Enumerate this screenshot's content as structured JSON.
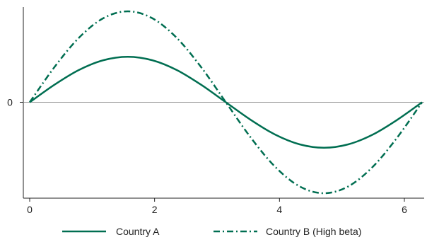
{
  "chart_data": {
    "type": "line",
    "title": "",
    "xlabel": "",
    "ylabel": "",
    "xlim": [
      0,
      6.2832
    ],
    "ylim": [
      -1.0,
      1.0
    ],
    "x_ticks": [
      0,
      2,
      4,
      6
    ],
    "x_tick_labels": [
      "0",
      "2",
      "4",
      "6"
    ],
    "y_ticks": [
      0
    ],
    "y_tick_labels": [
      "0"
    ],
    "zero_line": true,
    "grid": false,
    "legend_position": "bottom",
    "series": [
      {
        "name": "Country A",
        "color": "#006e51",
        "style": "solid",
        "x": [
          0,
          0.3927,
          0.7854,
          1.1781,
          1.5708,
          1.9635,
          2.3562,
          2.7489,
          3.1416,
          3.5343,
          3.927,
          4.3197,
          4.7124,
          5.1051,
          5.4978,
          5.8905,
          6.2832
        ],
        "values": [
          0,
          0.191,
          0.354,
          0.462,
          0.5,
          0.462,
          0.354,
          0.191,
          0,
          -0.191,
          -0.354,
          -0.462,
          -0.5,
          -0.462,
          -0.354,
          -0.191,
          0
        ]
      },
      {
        "name": "Country B (High beta)",
        "color": "#006e51",
        "style": "dash-dot",
        "x": [
          0,
          0.3927,
          0.7854,
          1.1781,
          1.5708,
          1.9635,
          2.3562,
          2.7489,
          3.1416,
          3.5343,
          3.927,
          4.3197,
          4.7124,
          5.1051,
          5.4978,
          5.8905,
          6.2832
        ],
        "values": [
          0,
          0.383,
          0.707,
          0.924,
          1.0,
          0.924,
          0.707,
          0.383,
          0,
          -0.383,
          -0.707,
          -0.924,
          -1.0,
          -0.924,
          -0.707,
          -0.383,
          0
        ]
      }
    ]
  }
}
